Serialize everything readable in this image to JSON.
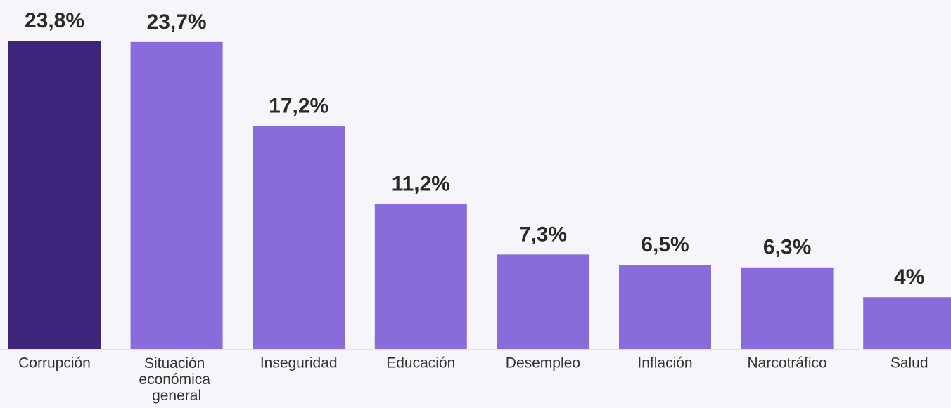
{
  "chart_data": {
    "type": "bar",
    "categories": [
      "Corrupción",
      "Situación económica general",
      "Inseguridad",
      "Educación",
      "Desempleo",
      "Inflación",
      "Narcotráfico",
      "Salud"
    ],
    "values": [
      23.8,
      23.7,
      17.2,
      11.2,
      7.3,
      6.5,
      6.3,
      4
    ],
    "value_labels": [
      "23,8%",
      "23,7%",
      "17,2%",
      "11,2%",
      "7,3%",
      "6,5%",
      "6,3%",
      "4%"
    ],
    "colors": [
      "#3f267d",
      "#8a6bdc",
      "#8a6bdc",
      "#8a6bdc",
      "#8a6bdc",
      "#8a6bdc",
      "#8a6bdc",
      "#8a6bdc"
    ]
  }
}
